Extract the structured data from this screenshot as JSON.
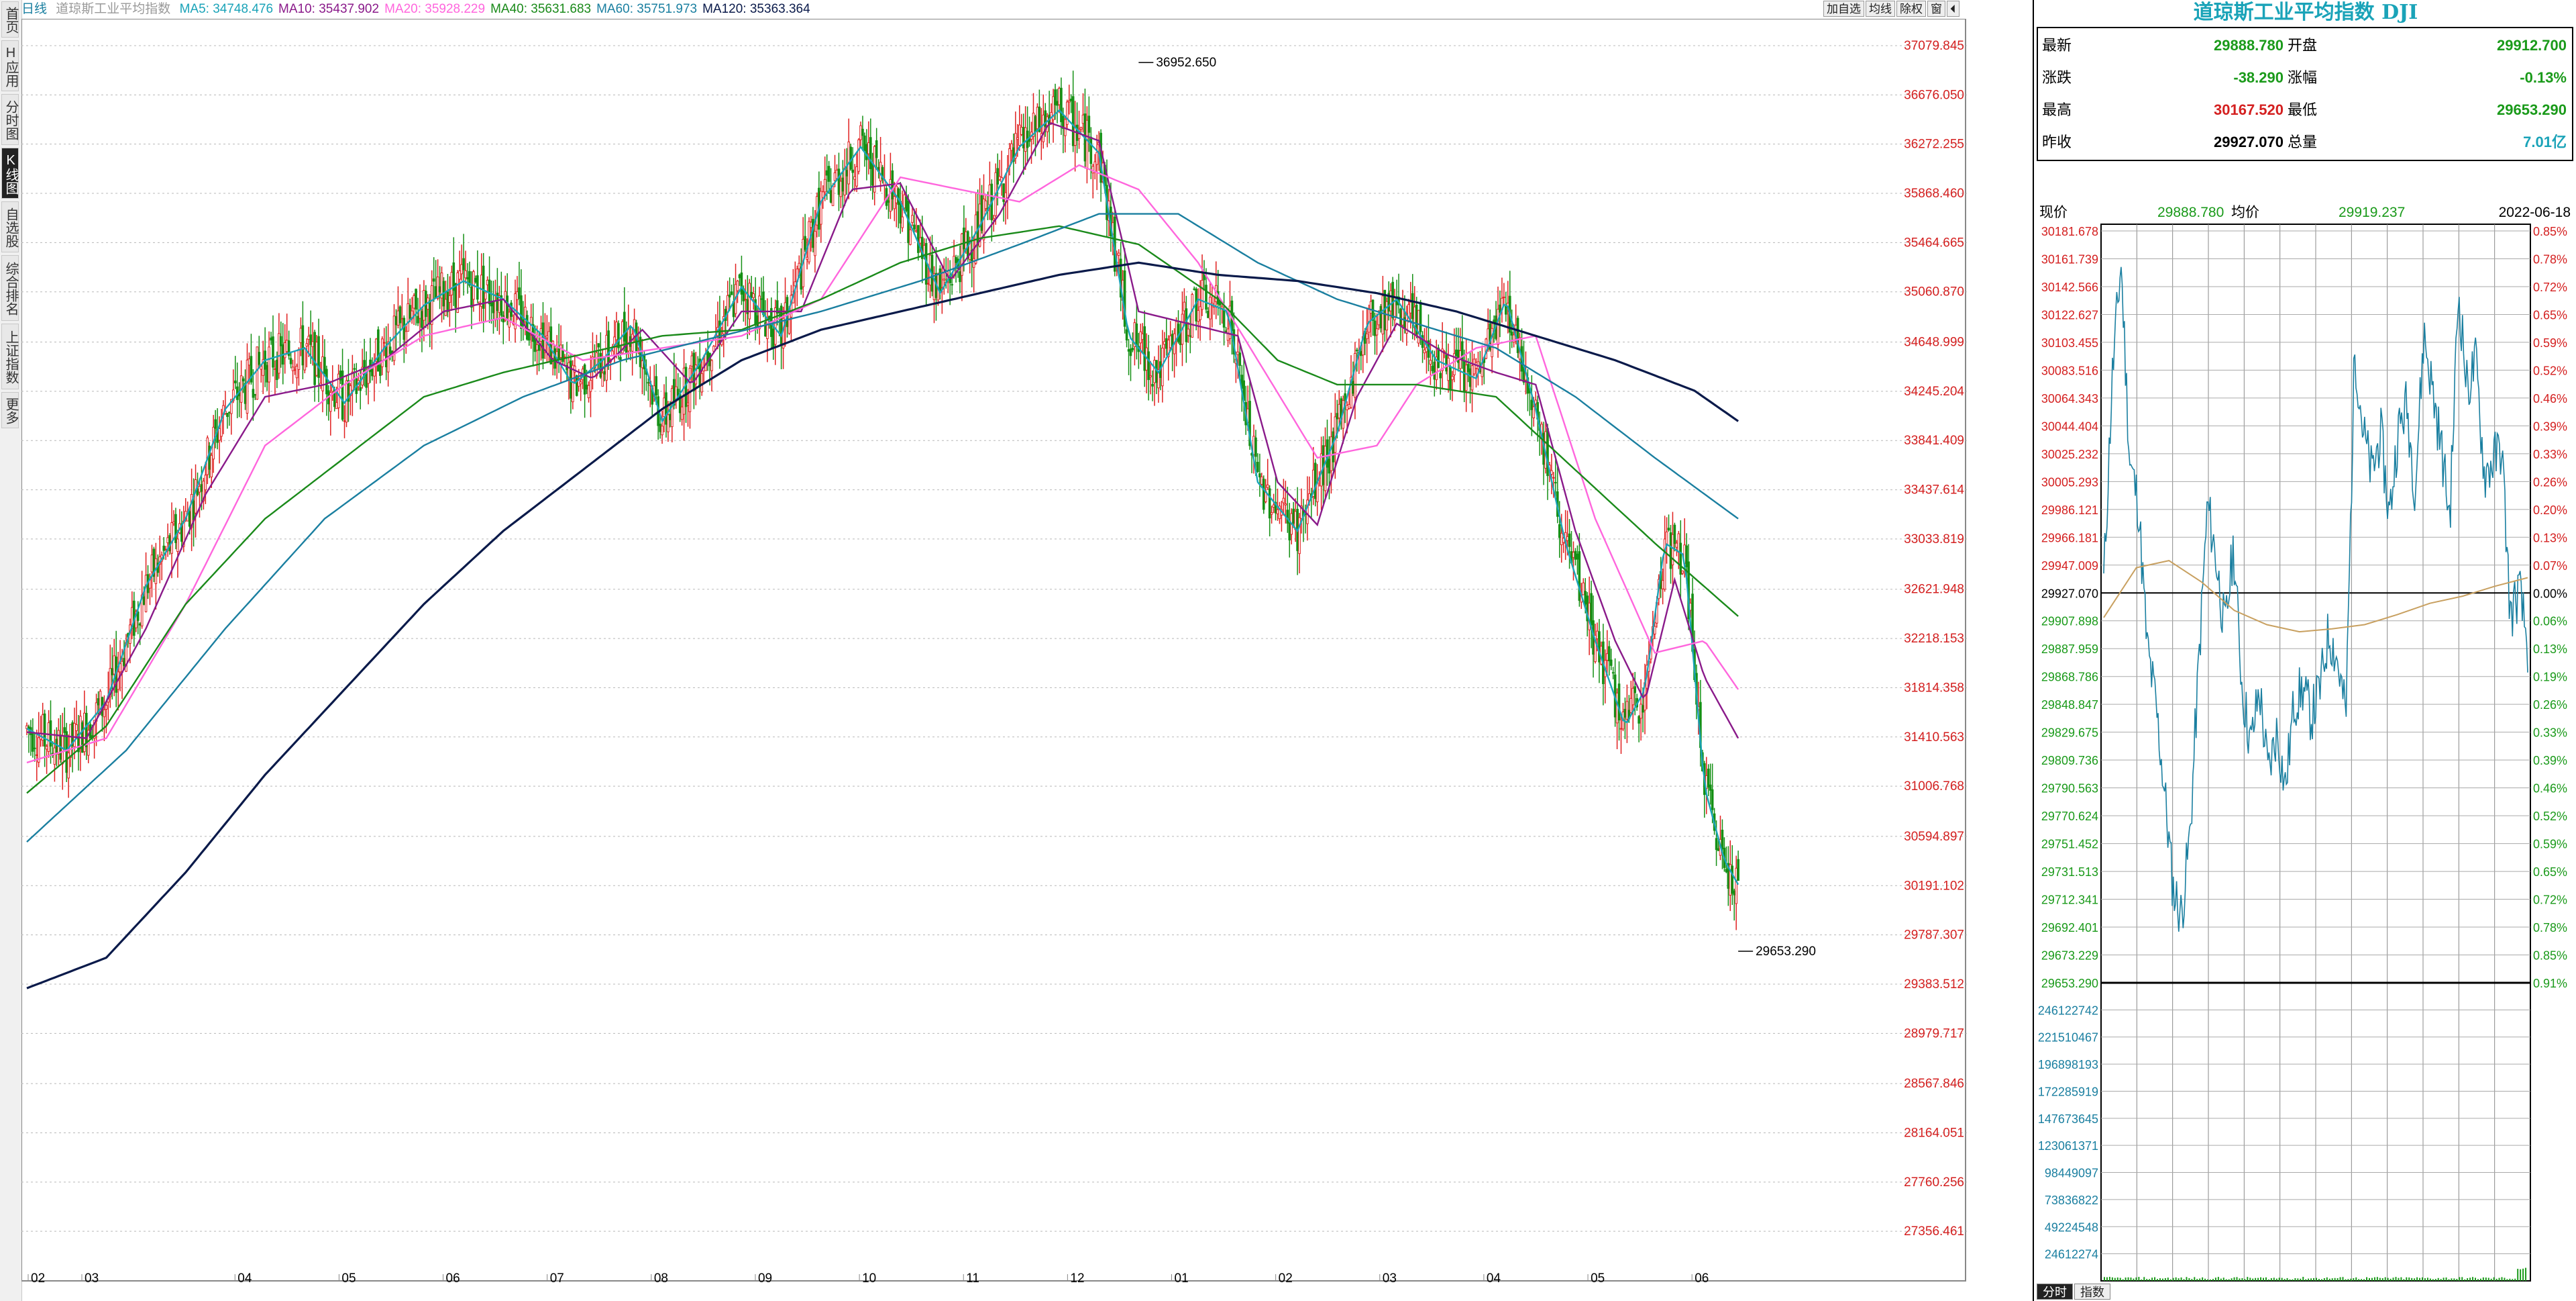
{
  "left_tabs": [
    {
      "label": "首页",
      "active": false
    },
    {
      "label": "H应用",
      "active": false
    },
    {
      "label": "分时图",
      "active": false
    },
    {
      "label": "K线图",
      "active": true
    },
    {
      "label": "自选股",
      "active": false
    },
    {
      "label": "综合排名",
      "active": false
    },
    {
      "label": "上证指数",
      "active": false
    },
    {
      "label": "更多",
      "active": false
    }
  ],
  "ma_bar": {
    "period": "日线",
    "index_name": "道琼斯工业平均指数",
    "items": [
      {
        "text": "MA5: 34748.476",
        "color": "#1aa3b8"
      },
      {
        "text": "MA10: 35437.902",
        "color": "#8a1a8a"
      },
      {
        "text": "MA20: 35928.229",
        "color": "#ff66dd"
      },
      {
        "text": "MA40: 35631.683",
        "color": "#1a8a1a"
      },
      {
        "text": "MA60: 35751.973",
        "color": "#1a7fa0"
      },
      {
        "text": "MA120: 35363.364",
        "color": "#0a1a4a"
      }
    ]
  },
  "top_buttons": [
    "加自选",
    "均线",
    "除权",
    "窗",
    "⏴"
  ],
  "chart_data": {
    "type": "candlestick",
    "y_ticks": [
      "37079.845",
      "36676.050",
      "36272.255",
      "35868.460",
      "35464.665",
      "35060.870",
      "34648.999",
      "34245.204",
      "33841.409",
      "33437.614",
      "33033.819",
      "32621.948",
      "32218.153",
      "31814.358",
      "31410.563",
      "31006.768",
      "30594.897",
      "30191.102",
      "29787.307",
      "29383.512",
      "28979.717",
      "28567.846",
      "28164.051",
      "27760.256",
      "27356.461"
    ],
    "x_ticks": [
      "02",
      "03",
      "04",
      "05",
      "06",
      "07",
      "08",
      "09",
      "10",
      "11",
      "12",
      "01",
      "02",
      "03",
      "04",
      "05",
      "06"
    ],
    "high_marker": "36952.650",
    "low_marker": "29653.290",
    "ylim": [
      26950,
      37300
    ],
    "ma_lines": [
      {
        "name": "MA5",
        "color": "#1aa3b8",
        "points": [
          [
            0,
            31480
          ],
          [
            20,
            31300
          ],
          [
            40,
            31700
          ],
          [
            60,
            32650
          ],
          [
            80,
            33200
          ],
          [
            100,
            34100
          ],
          [
            120,
            34500
          ],
          [
            140,
            34600
          ],
          [
            160,
            34150
          ],
          [
            180,
            34600
          ],
          [
            200,
            34950
          ],
          [
            220,
            35150
          ],
          [
            240,
            35000
          ],
          [
            260,
            34700
          ],
          [
            275,
            34300
          ],
          [
            290,
            34500
          ],
          [
            305,
            34800
          ],
          [
            320,
            34000
          ],
          [
            340,
            34500
          ],
          [
            360,
            35100
          ],
          [
            380,
            34700
          ],
          [
            400,
            35800
          ],
          [
            420,
            36250
          ],
          [
            440,
            35800
          ],
          [
            460,
            35050
          ],
          [
            480,
            35600
          ],
          [
            500,
            36250
          ],
          [
            520,
            36550
          ],
          [
            540,
            36200
          ],
          [
            555,
            34700
          ],
          [
            570,
            34400
          ],
          [
            590,
            35000
          ],
          [
            605,
            34900
          ],
          [
            620,
            33500
          ],
          [
            640,
            33100
          ],
          [
            660,
            33900
          ],
          [
            675,
            34800
          ],
          [
            690,
            35000
          ],
          [
            710,
            34500
          ],
          [
            730,
            34350
          ],
          [
            745,
            35000
          ],
          [
            760,
            34100
          ],
          [
            775,
            33000
          ],
          [
            790,
            32200
          ],
          [
            805,
            31500
          ],
          [
            815,
            31800
          ],
          [
            825,
            33000
          ],
          [
            835,
            32900
          ],
          [
            845,
            31000
          ],
          [
            855,
            30400
          ],
          [
            862,
            30200
          ]
        ]
      },
      {
        "name": "MA10",
        "color": "#8a1a8a",
        "points": [
          [
            0,
            31450
          ],
          [
            30,
            31400
          ],
          [
            60,
            32300
          ],
          [
            90,
            33400
          ],
          [
            120,
            34200
          ],
          [
            150,
            34300
          ],
          [
            180,
            34500
          ],
          [
            210,
            34900
          ],
          [
            240,
            35000
          ],
          [
            265,
            34500
          ],
          [
            285,
            34350
          ],
          [
            310,
            34750
          ],
          [
            335,
            34300
          ],
          [
            360,
            34900
          ],
          [
            390,
            34900
          ],
          [
            415,
            35900
          ],
          [
            440,
            35950
          ],
          [
            465,
            35150
          ],
          [
            490,
            35700
          ],
          [
            515,
            36450
          ],
          [
            540,
            36300
          ],
          [
            560,
            34900
          ],
          [
            585,
            34800
          ],
          [
            610,
            34700
          ],
          [
            630,
            33500
          ],
          [
            650,
            33150
          ],
          [
            670,
            34200
          ],
          [
            690,
            34800
          ],
          [
            715,
            34550
          ],
          [
            740,
            34400
          ],
          [
            760,
            34300
          ],
          [
            780,
            33100
          ],
          [
            800,
            32200
          ],
          [
            815,
            31700
          ],
          [
            830,
            32700
          ],
          [
            845,
            31900
          ],
          [
            862,
            31400
          ]
        ]
      },
      {
        "name": "MA20",
        "color": "#ff66dd",
        "points": [
          [
            0,
            31200
          ],
          [
            40,
            31400
          ],
          [
            80,
            32500
          ],
          [
            120,
            33800
          ],
          [
            160,
            34300
          ],
          [
            200,
            34700
          ],
          [
            240,
            34850
          ],
          [
            280,
            34500
          ],
          [
            320,
            34600
          ],
          [
            360,
            34700
          ],
          [
            400,
            35000
          ],
          [
            440,
            36000
          ],
          [
            470,
            35900
          ],
          [
            500,
            35800
          ],
          [
            530,
            36100
          ],
          [
            560,
            35900
          ],
          [
            590,
            35300
          ],
          [
            620,
            34500
          ],
          [
            650,
            33700
          ],
          [
            680,
            33800
          ],
          [
            700,
            34300
          ],
          [
            730,
            34600
          ],
          [
            760,
            34700
          ],
          [
            790,
            33200
          ],
          [
            820,
            32100
          ],
          [
            845,
            32200
          ],
          [
            862,
            31800
          ]
        ]
      },
      {
        "name": "MA40",
        "color": "#1a8a1a",
        "points": [
          [
            0,
            30950
          ],
          [
            40,
            31500
          ],
          [
            80,
            32500
          ],
          [
            120,
            33200
          ],
          [
            160,
            33700
          ],
          [
            200,
            34200
          ],
          [
            240,
            34400
          ],
          [
            280,
            34550
          ],
          [
            320,
            34700
          ],
          [
            360,
            34750
          ],
          [
            400,
            35000
          ],
          [
            440,
            35300
          ],
          [
            480,
            35500
          ],
          [
            520,
            35600
          ],
          [
            560,
            35450
          ],
          [
            600,
            35000
          ],
          [
            630,
            34500
          ],
          [
            660,
            34300
          ],
          [
            700,
            34300
          ],
          [
            740,
            34200
          ],
          [
            780,
            33600
          ],
          [
            820,
            33000
          ],
          [
            862,
            32400
          ]
        ]
      },
      {
        "name": "MA60",
        "color": "#1a7fa0",
        "points": [
          [
            0,
            30550
          ],
          [
            50,
            31300
          ],
          [
            100,
            32300
          ],
          [
            150,
            33200
          ],
          [
            200,
            33800
          ],
          [
            250,
            34200
          ],
          [
            300,
            34500
          ],
          [
            350,
            34700
          ],
          [
            400,
            34900
          ],
          [
            450,
            35150
          ],
          [
            500,
            35450
          ],
          [
            540,
            35700
          ],
          [
            580,
            35700
          ],
          [
            620,
            35300
          ],
          [
            660,
            35000
          ],
          [
            700,
            34800
          ],
          [
            740,
            34600
          ],
          [
            780,
            34200
          ],
          [
            820,
            33700
          ],
          [
            862,
            33200
          ]
        ]
      },
      {
        "name": "MA120",
        "color": "#0a1a4a",
        "points": [
          [
            0,
            29350
          ],
          [
            40,
            29600
          ],
          [
            80,
            30300
          ],
          [
            120,
            31100
          ],
          [
            160,
            31800
          ],
          [
            200,
            32500
          ],
          [
            240,
            33100
          ],
          [
            280,
            33600
          ],
          [
            320,
            34100
          ],
          [
            360,
            34500
          ],
          [
            400,
            34750
          ],
          [
            440,
            34900
          ],
          [
            480,
            35050
          ],
          [
            520,
            35200
          ],
          [
            560,
            35300
          ],
          [
            600,
            35200
          ],
          [
            640,
            35150
          ],
          [
            680,
            35050
          ],
          [
            720,
            34900
          ],
          [
            760,
            34700
          ],
          [
            800,
            34500
          ],
          [
            840,
            34250
          ],
          [
            862,
            34000
          ]
        ]
      }
    ]
  },
  "right_panel": {
    "title": "道琼斯工业平均指数 DJI",
    "quote": [
      {
        "l1": "最新",
        "v1": "29888.780",
        "c1": "green",
        "l2": "开盘",
        "v2": "29912.700",
        "c2": "green"
      },
      {
        "l1": "涨跌",
        "v1": "-38.290",
        "c1": "green",
        "l2": "涨幅",
        "v2": "-0.13%",
        "c2": "green"
      },
      {
        "l1": "最高",
        "v1": "30167.520",
        "c1": "red",
        "l2": "最低",
        "v2": "29653.290",
        "c2": "green"
      },
      {
        "l1": "昨收",
        "v1": "29927.070",
        "c1": "black",
        "l2": "总量",
        "v2": "7.01亿",
        "c2": "cyan"
      }
    ],
    "intraday_head": {
      "now_label": "现价",
      "now_value": "29888.780",
      "avg_label": "均价",
      "avg_value": "29919.237",
      "date": "2022-06-18"
    },
    "intraday_chart": {
      "price_ticks": [
        "30181.678",
        "30161.739",
        "30142.566",
        "30122.627",
        "30103.455",
        "30083.516",
        "30064.343",
        "30044.404",
        "30025.232",
        "30005.293",
        "29986.121",
        "29966.181",
        "29947.009",
        "29927.070",
        "29907.898",
        "29887.959",
        "29868.786",
        "29848.847",
        "29829.675",
        "29809.736",
        "29790.563",
        "29770.624",
        "29751.452",
        "29731.513",
        "29712.341",
        "29692.401",
        "29673.229",
        "29653.290"
      ],
      "pct_ticks": [
        "0.85%",
        "0.78%",
        "0.72%",
        "0.65%",
        "0.59%",
        "0.52%",
        "0.46%",
        "0.39%",
        "0.33%",
        "0.26%",
        "0.20%",
        "0.13%",
        "0.07%",
        "0.00%",
        "0.06%",
        "0.13%",
        "0.19%",
        "0.26%",
        "0.33%",
        "0.39%",
        "0.46%",
        "0.52%",
        "0.59%",
        "0.65%",
        "0.72%",
        "0.78%",
        "0.85%",
        "0.91%"
      ],
      "volume_ticks": [
        "246122742",
        "221510467",
        "196898193",
        "172285919",
        "147673645",
        "123061371",
        "98449097",
        "73836822",
        "49224548",
        "24612274"
      ],
      "price_series": [
        29935,
        30080,
        30160,
        30020,
        29990,
        29890,
        29850,
        29790,
        29720,
        29700,
        29760,
        29880,
        29990,
        29950,
        29900,
        29960,
        29860,
        29820,
        29860,
        29800,
        29830,
        29790,
        29850,
        29860,
        29840,
        29860,
        29900,
        29880,
        29840,
        30100,
        30040,
        30010,
        30040,
        29980,
        30040,
        30060,
        30000,
        30110,
        30070,
        30030,
        29980,
        30140,
        30070,
        30090,
        30010,
        30020,
        30030,
        29910,
        29930,
        29890
      ]
    }
  },
  "bottom_tabs": [
    {
      "label": "分时",
      "active": true
    },
    {
      "label": "指数",
      "active": false
    }
  ]
}
